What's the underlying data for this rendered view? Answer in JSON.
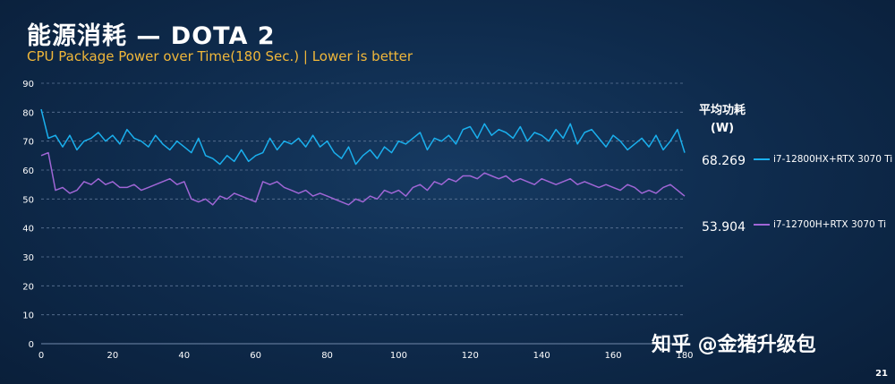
{
  "title": "能源消耗 — DOTA 2",
  "subtitle": "CPU Package Power over Time(180 Sec.) | Lower is better",
  "average_header": [
    "平均功耗",
    "(W)"
  ],
  "watermark": "知乎 @金猪升级包",
  "page_number": "21",
  "colors": {
    "series_a": "#1ab0ee",
    "series_b": "#a066d6",
    "grid": "#5e7696",
    "axis_text": "#ffffff"
  },
  "chart_data": {
    "type": "line",
    "title": "",
    "xlabel": "",
    "ylabel": "",
    "xlim": [
      0,
      180
    ],
    "ylim": [
      0,
      90
    ],
    "xticks": [
      0,
      20,
      40,
      60,
      80,
      100,
      120,
      140,
      160,
      180
    ],
    "yticks": [
      0,
      10,
      20,
      30,
      40,
      50,
      60,
      70,
      80,
      90
    ],
    "grid": "horizontal",
    "legend": "right",
    "series": [
      {
        "name": "i7-12800HX+RTX 3070 Ti",
        "average": "68.269",
        "x": [
          0,
          2,
          4,
          6,
          8,
          10,
          12,
          14,
          16,
          18,
          20,
          22,
          24,
          26,
          28,
          30,
          32,
          34,
          36,
          38,
          40,
          42,
          44,
          46,
          48,
          50,
          52,
          54,
          56,
          58,
          60,
          62,
          64,
          66,
          68,
          70,
          72,
          74,
          76,
          78,
          80,
          82,
          84,
          86,
          88,
          90,
          92,
          94,
          96,
          98,
          100,
          102,
          104,
          106,
          108,
          110,
          112,
          114,
          116,
          118,
          120,
          122,
          124,
          126,
          128,
          130,
          132,
          134,
          136,
          138,
          140,
          142,
          144,
          146,
          148,
          150,
          152,
          154,
          156,
          158,
          160,
          162,
          164,
          166,
          168,
          170,
          172,
          174,
          176,
          178,
          180
        ],
        "y": [
          81,
          71,
          72,
          68,
          72,
          67,
          70,
          71,
          73,
          70,
          72,
          69,
          74,
          71,
          70,
          68,
          72,
          69,
          67,
          70,
          68,
          66,
          71,
          65,
          64,
          62,
          65,
          63,
          67,
          63,
          65,
          66,
          71,
          67,
          70,
          69,
          71,
          68,
          72,
          68,
          70,
          66,
          64,
          68,
          62,
          65,
          67,
          64,
          68,
          66,
          70,
          69,
          71,
          73,
          67,
          71,
          70,
          72,
          69,
          74,
          75,
          71,
          76,
          72,
          74,
          73,
          71,
          75,
          70,
          73,
          72,
          70,
          74,
          71,
          76,
          69,
          73,
          74,
          71,
          68,
          72,
          70,
          67,
          69,
          71,
          68,
          72,
          67,
          70,
          74,
          66
        ]
      },
      {
        "name": "i7-12700H+RTX 3070 Ti",
        "average": "53.904",
        "x": [
          0,
          2,
          4,
          6,
          8,
          10,
          12,
          14,
          16,
          18,
          20,
          22,
          24,
          26,
          28,
          30,
          32,
          34,
          36,
          38,
          40,
          42,
          44,
          46,
          48,
          50,
          52,
          54,
          56,
          58,
          60,
          62,
          64,
          66,
          68,
          70,
          72,
          74,
          76,
          78,
          80,
          82,
          84,
          86,
          88,
          90,
          92,
          94,
          96,
          98,
          100,
          102,
          104,
          106,
          108,
          110,
          112,
          114,
          116,
          118,
          120,
          122,
          124,
          126,
          128,
          130,
          132,
          134,
          136,
          138,
          140,
          142,
          144,
          146,
          148,
          150,
          152,
          154,
          156,
          158,
          160,
          162,
          164,
          166,
          168,
          170,
          172,
          174,
          176,
          178,
          180
        ],
        "y": [
          65,
          66,
          53,
          54,
          52,
          53,
          56,
          55,
          57,
          55,
          56,
          54,
          54,
          55,
          53,
          54,
          55,
          56,
          57,
          55,
          56,
          50,
          49,
          50,
          48,
          51,
          50,
          52,
          51,
          50,
          49,
          56,
          55,
          56,
          54,
          53,
          52,
          53,
          51,
          52,
          51,
          50,
          49,
          48,
          50,
          49,
          51,
          50,
          53,
          52,
          53,
          51,
          54,
          55,
          53,
          56,
          55,
          57,
          56,
          58,
          58,
          57,
          59,
          58,
          57,
          58,
          56,
          57,
          56,
          55,
          57,
          56,
          55,
          56,
          57,
          55,
          56,
          55,
          54,
          55,
          54,
          53,
          55,
          54,
          52,
          53,
          52,
          54,
          55,
          53,
          51
        ]
      }
    ]
  }
}
